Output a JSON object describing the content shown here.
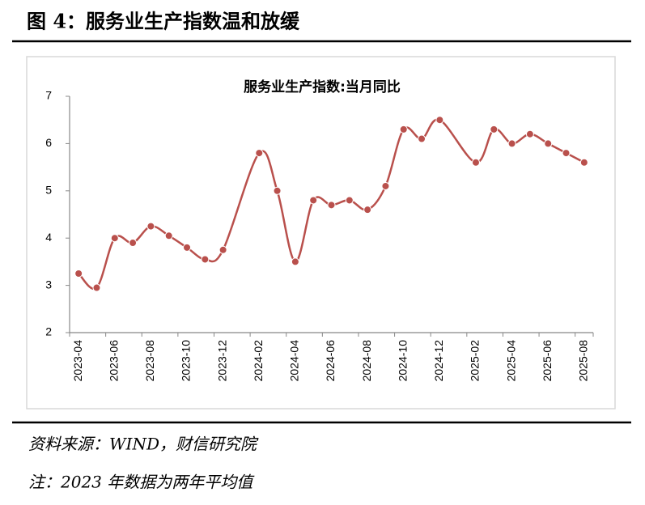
{
  "header": {
    "title": "图 4：服务业生产指数温和放缓"
  },
  "chart_data": {
    "type": "line",
    "title": "服务业生产指数:当月同比",
    "categories": [
      "2023-04",
      null,
      "2023-06",
      null,
      "2023-08",
      null,
      "2023-10",
      null,
      "2023-12",
      null,
      "2024-02",
      null,
      "2024-04",
      null,
      "2024-06",
      null,
      "2024-08",
      null,
      "2024-10",
      null,
      "2024-12",
      null,
      "2025-02",
      null,
      "2025-04",
      null,
      "2025-06",
      null,
      "2025-08"
    ],
    "values": [
      3.25,
      2.95,
      4.0,
      3.9,
      4.25,
      4.05,
      3.8,
      3.55,
      3.75,
      null,
      5.8,
      5.0,
      3.5,
      4.8,
      4.7,
      4.8,
      4.6,
      5.1,
      6.3,
      6.1,
      6.5,
      null,
      5.6,
      6.3,
      6.0,
      6.2,
      6.0,
      5.8,
      5.6
    ],
    "color": "#b9504c",
    "smooth": true,
    "span_gaps": true,
    "grid": false,
    "ylim": [
      2,
      7
    ],
    "yticks": [
      2,
      3,
      4,
      5,
      6,
      7
    ]
  },
  "notes": {
    "source": "资料来源：WIND，财信研究院",
    "note": "注：2023 年数据为两年平均值"
  }
}
